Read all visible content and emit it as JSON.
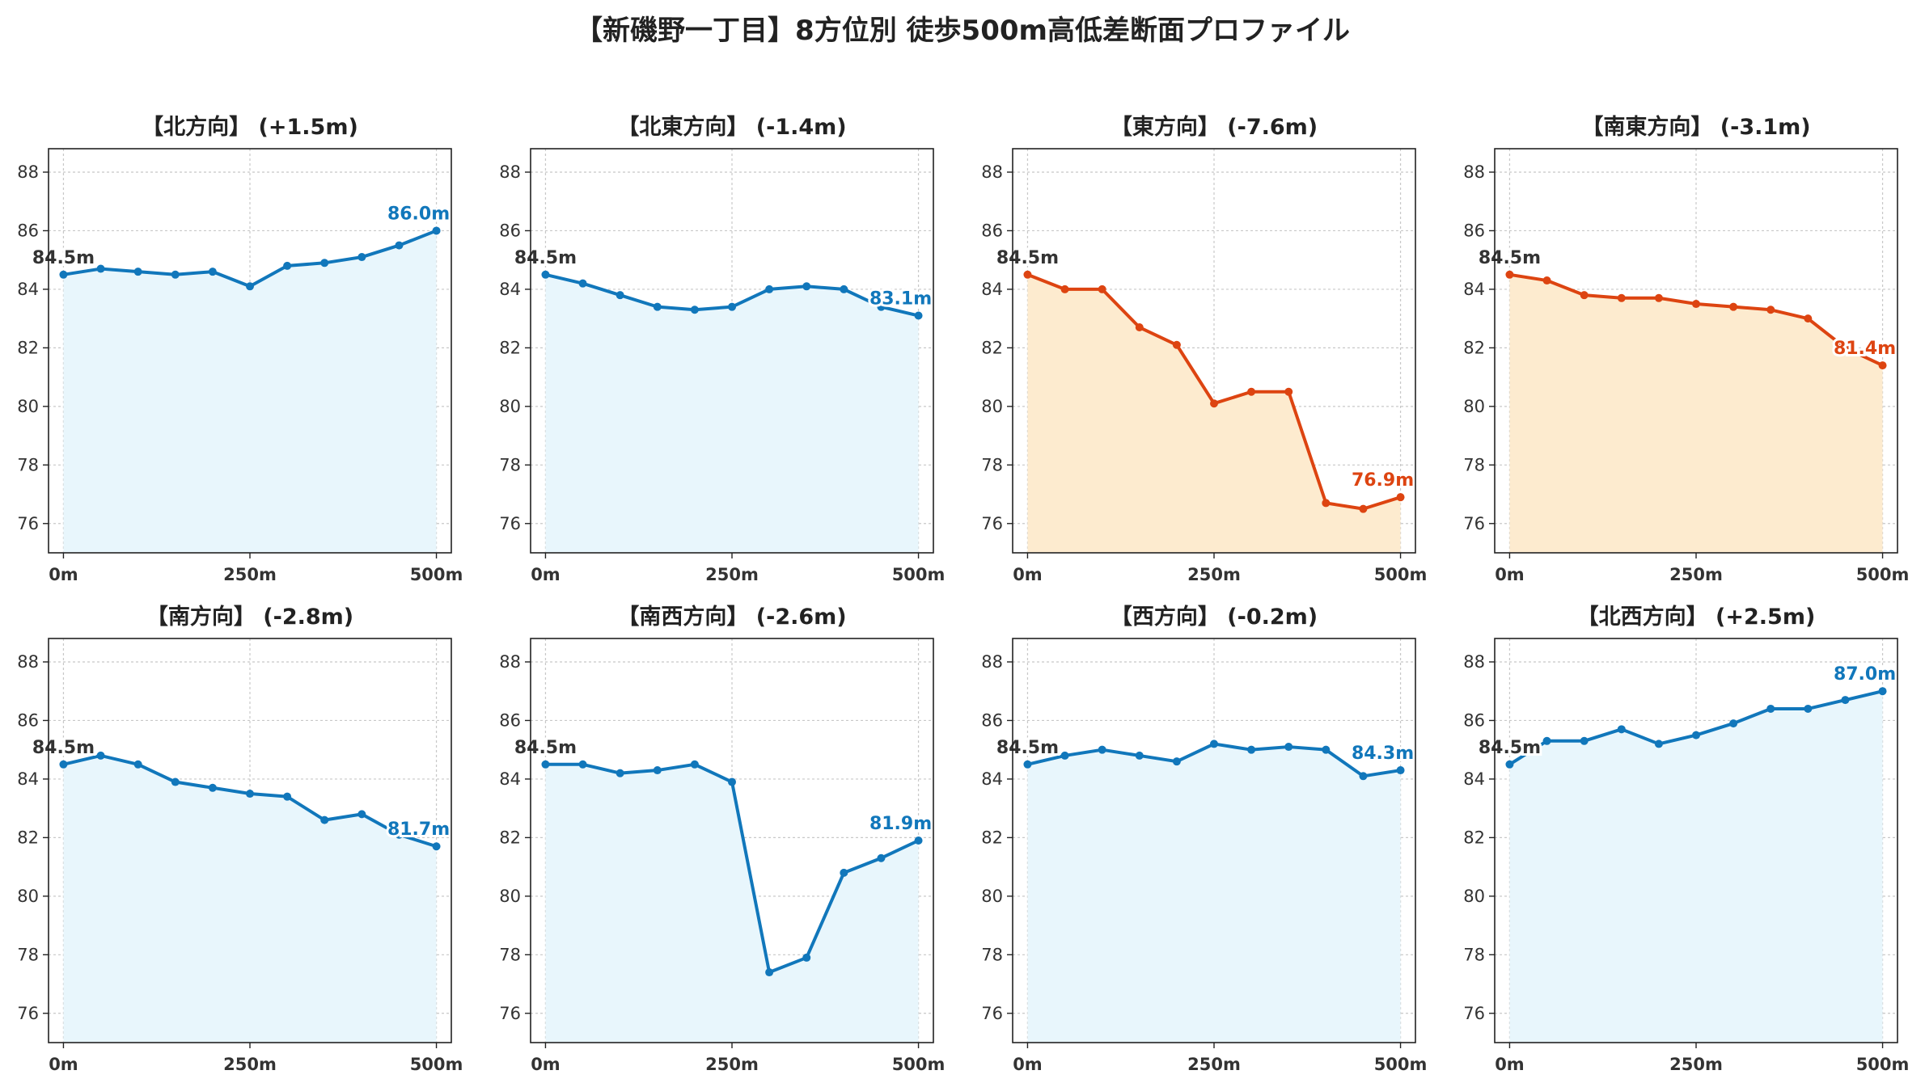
{
  "title": "【新磯野一丁目】8方位別 徒歩500m高低差断面プロファイル",
  "colors": {
    "up": "#1177bb",
    "down": "#dd4411",
    "fill_up": "#e8f6fc",
    "fill_down": "#fdebcf"
  },
  "chart_data": [
    {
      "type": "area",
      "title": "【北方向】 (+1.5m)",
      "trend": "up",
      "x": [
        0,
        50,
        100,
        150,
        200,
        250,
        300,
        350,
        400,
        450,
        500
      ],
      "y": [
        84.5,
        84.7,
        84.6,
        84.5,
        84.6,
        84.1,
        84.8,
        84.9,
        85.1,
        85.5,
        86.0
      ],
      "start_label": "84.5m",
      "end_label": "86.0m",
      "xticks": [
        "0m",
        "250m",
        "500m"
      ],
      "yticks": [
        76,
        78,
        80,
        82,
        84,
        86,
        88
      ],
      "xlim": [
        -20,
        520
      ],
      "ylim": [
        75,
        88.8
      ],
      "grid": true
    },
    {
      "type": "area",
      "title": "【北東方向】 (-1.4m)",
      "trend": "up",
      "x": [
        0,
        50,
        100,
        150,
        200,
        250,
        300,
        350,
        400,
        450,
        500
      ],
      "y": [
        84.5,
        84.2,
        83.8,
        83.4,
        83.3,
        83.4,
        84.0,
        84.1,
        84.0,
        83.4,
        83.1
      ],
      "start_label": "84.5m",
      "end_label": "83.1m",
      "xticks": [
        "0m",
        "250m",
        "500m"
      ],
      "yticks": [
        76,
        78,
        80,
        82,
        84,
        86,
        88
      ],
      "xlim": [
        -20,
        520
      ],
      "ylim": [
        75,
        88.8
      ],
      "grid": true
    },
    {
      "type": "area",
      "title": "【東方向】 (-7.6m)",
      "trend": "down",
      "x": [
        0,
        50,
        100,
        150,
        200,
        250,
        300,
        350,
        400,
        450,
        500
      ],
      "y": [
        84.5,
        84.0,
        84.0,
        82.7,
        82.1,
        80.1,
        80.5,
        80.5,
        76.7,
        76.5,
        76.9
      ],
      "start_label": "84.5m",
      "end_label": "76.9m",
      "xticks": [
        "0m",
        "250m",
        "500m"
      ],
      "yticks": [
        76,
        78,
        80,
        82,
        84,
        86,
        88
      ],
      "xlim": [
        -20,
        520
      ],
      "ylim": [
        75,
        88.8
      ],
      "grid": true
    },
    {
      "type": "area",
      "title": "【南東方向】 (-3.1m)",
      "trend": "down",
      "x": [
        0,
        50,
        100,
        150,
        200,
        250,
        300,
        350,
        400,
        450,
        500
      ],
      "y": [
        84.5,
        84.3,
        83.8,
        83.7,
        83.7,
        83.5,
        83.4,
        83.3,
        83.0,
        82.0,
        81.4
      ],
      "start_label": "84.5m",
      "end_label": "81.4m",
      "xticks": [
        "0m",
        "250m",
        "500m"
      ],
      "yticks": [
        76,
        78,
        80,
        82,
        84,
        86,
        88
      ],
      "xlim": [
        -20,
        520
      ],
      "ylim": [
        75,
        88.8
      ],
      "grid": true
    },
    {
      "type": "area",
      "title": "【南方向】 (-2.8m)",
      "trend": "up",
      "x": [
        0,
        50,
        100,
        150,
        200,
        250,
        300,
        350,
        400,
        450,
        500
      ],
      "y": [
        84.5,
        84.8,
        84.5,
        83.9,
        83.7,
        83.5,
        83.4,
        82.6,
        82.8,
        82.1,
        81.7
      ],
      "start_label": "84.5m",
      "end_label": "81.7m",
      "xticks": [
        "0m",
        "250m",
        "500m"
      ],
      "yticks": [
        76,
        78,
        80,
        82,
        84,
        86,
        88
      ],
      "xlim": [
        -20,
        520
      ],
      "ylim": [
        75,
        88.8
      ],
      "grid": true
    },
    {
      "type": "area",
      "title": "【南西方向】 (-2.6m)",
      "trend": "up",
      "x": [
        0,
        50,
        100,
        150,
        200,
        250,
        300,
        350,
        400,
        450,
        500
      ],
      "y": [
        84.5,
        84.5,
        84.2,
        84.3,
        84.5,
        83.9,
        77.4,
        77.9,
        80.8,
        81.3,
        81.9
      ],
      "start_label": "84.5m",
      "end_label": "81.9m",
      "xticks": [
        "0m",
        "250m",
        "500m"
      ],
      "yticks": [
        76,
        78,
        80,
        82,
        84,
        86,
        88
      ],
      "xlim": [
        -20,
        520
      ],
      "ylim": [
        75,
        88.8
      ],
      "grid": true
    },
    {
      "type": "area",
      "title": "【西方向】 (-0.2m)",
      "trend": "up",
      "x": [
        0,
        50,
        100,
        150,
        200,
        250,
        300,
        350,
        400,
        450,
        500
      ],
      "y": [
        84.5,
        84.8,
        85.0,
        84.8,
        84.6,
        85.2,
        85.0,
        85.1,
        85.0,
        84.1,
        84.3
      ],
      "start_label": "84.5m",
      "end_label": "84.3m",
      "xticks": [
        "0m",
        "250m",
        "500m"
      ],
      "yticks": [
        76,
        78,
        80,
        82,
        84,
        86,
        88
      ],
      "xlim": [
        -20,
        520
      ],
      "ylim": [
        75,
        88.8
      ],
      "grid": true
    },
    {
      "type": "area",
      "title": "【北西方向】 (+2.5m)",
      "trend": "up",
      "x": [
        0,
        50,
        100,
        150,
        200,
        250,
        300,
        350,
        400,
        450,
        500
      ],
      "y": [
        84.5,
        85.3,
        85.3,
        85.7,
        85.2,
        85.5,
        85.9,
        86.4,
        86.4,
        86.7,
        87.0
      ],
      "start_label": "84.5m",
      "end_label": "87.0m",
      "xticks": [
        "0m",
        "250m",
        "500m"
      ],
      "yticks": [
        76,
        78,
        80,
        82,
        84,
        86,
        88
      ],
      "xlim": [
        -20,
        520
      ],
      "ylim": [
        75,
        88.8
      ],
      "grid": true
    }
  ]
}
